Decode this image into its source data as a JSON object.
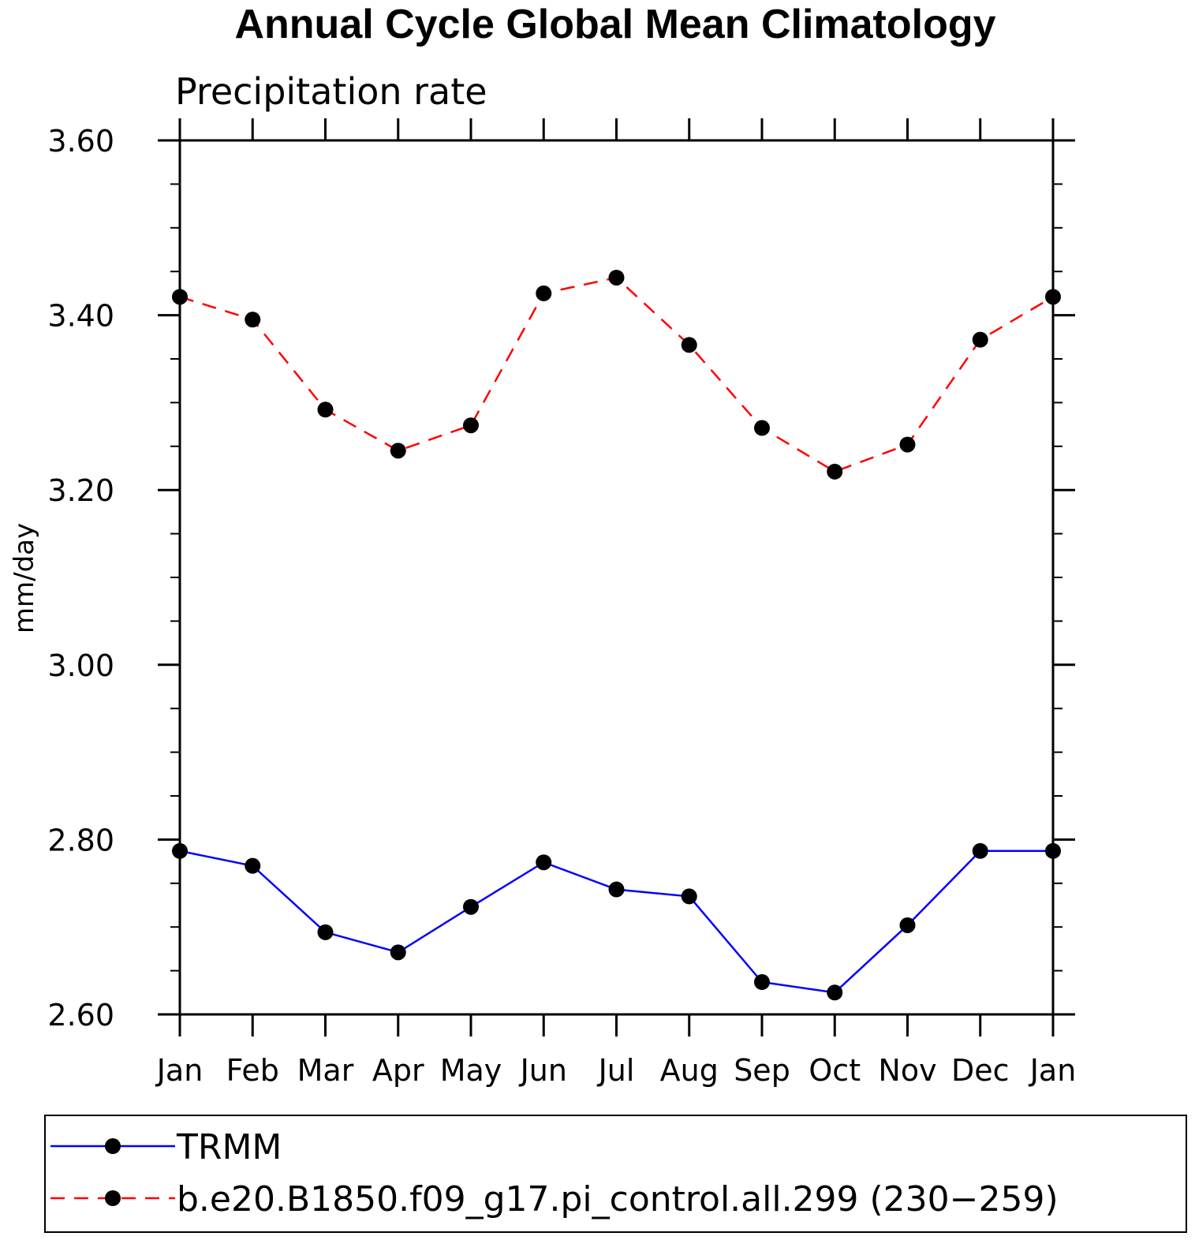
{
  "chart_data": {
    "type": "line",
    "title": "Annual Cycle Global Mean Climatology",
    "subtitle": "Precipitation rate",
    "xlabel": "",
    "ylabel": "mm/day",
    "ylim": [
      2.6,
      3.6
    ],
    "yticks": [
      "2.60",
      "2.80",
      "3.00",
      "3.20",
      "3.40",
      "3.60"
    ],
    "ytick_values": [
      2.6,
      2.8,
      3.0,
      3.2,
      3.4,
      3.6
    ],
    "categories": [
      "Jan",
      "Feb",
      "Mar",
      "Apr",
      "May",
      "Jun",
      "Jul",
      "Aug",
      "Sep",
      "Oct",
      "Nov",
      "Dec",
      "Jan"
    ],
    "series": [
      {
        "name": "TRMM",
        "color": "#0000ff",
        "dash": "solid",
        "values": [
          2.787,
          2.77,
          2.694,
          2.671,
          2.723,
          2.774,
          2.743,
          2.735,
          2.637,
          2.625,
          2.702,
          2.787,
          2.787
        ]
      },
      {
        "name": "b.e20.B1850.f09_g17.pi_control.all.299 (230−259)",
        "color": "#ff0000",
        "dash": "dashed",
        "values": [
          3.421,
          3.395,
          3.292,
          3.245,
          3.274,
          3.425,
          3.443,
          3.366,
          3.271,
          3.221,
          3.252,
          3.372,
          3.421
        ]
      }
    ],
    "legend_position": "bottom"
  }
}
